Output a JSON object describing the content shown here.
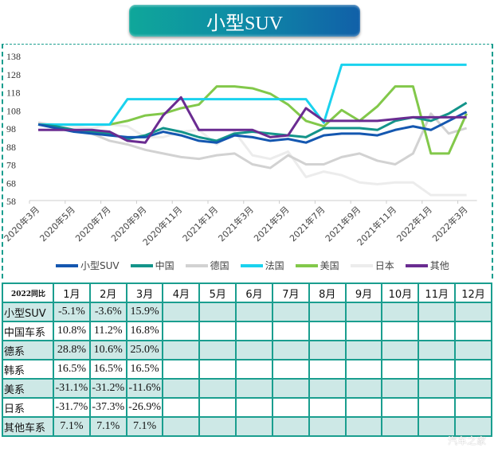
{
  "title": "小型SUV",
  "chart_data": {
    "type": "line",
    "title": "小型SUV",
    "x": [
      "2020年3月",
      "2020年4月",
      "2020年5月",
      "2020年6月",
      "2020年7月",
      "2020年8月",
      "2020年9月",
      "2020年10月",
      "2020年11月",
      "2020年12月",
      "2021年1月",
      "2021年2月",
      "2021年3月",
      "2021年4月",
      "2021年5月",
      "2021年6月",
      "2021年7月",
      "2021年8月",
      "2021年9月",
      "2021年10月",
      "2021年11月",
      "2021年12月",
      "2022年1月",
      "2022年2月",
      "2022年3月"
    ],
    "x_tick_labels": [
      "2020年3月",
      "2020年5月",
      "2020年7月",
      "2020年9月",
      "2020年11月",
      "2021年1月",
      "2021年3月",
      "2021年5月",
      "2021年7月",
      "2021年9月",
      "2021年11月",
      "2022年1月",
      "2022年3月"
    ],
    "ylim": [
      58,
      138
    ],
    "y_ticks": [
      58,
      68,
      78,
      88,
      98,
      108,
      118,
      128,
      138
    ],
    "grid": false,
    "legend_placement": "bottom",
    "series": [
      {
        "name": "小型SUV",
        "color": "#1457b0",
        "values": [
          100,
          98,
          96,
          95,
          94,
          93,
          93,
          96,
          94,
          91,
          90,
          94,
          93,
          91,
          92,
          90,
          94,
          95,
          95,
          94,
          97,
          99,
          97,
          102,
          107
        ]
      },
      {
        "name": "中国",
        "color": "#13948a",
        "values": [
          100,
          99,
          97,
          96,
          95,
          92,
          94,
          98,
          96,
          93,
          91,
          95,
          96,
          95,
          94,
          93,
          98,
          98,
          98,
          97,
          102,
          104,
          102,
          106,
          112
        ]
      },
      {
        "name": "德国",
        "color": "#d2d2d2",
        "values": [
          101,
          99,
          97,
          95,
          91,
          89,
          86,
          84,
          82,
          81,
          83,
          84,
          78,
          76,
          83,
          78,
          78,
          82,
          84,
          80,
          78,
          84,
          106,
          95,
          98
        ]
      },
      {
        "name": "法国",
        "color": "#1ad2ee",
        "values": [
          100,
          100,
          100,
          100,
          100,
          114,
          114,
          114,
          114,
          114,
          114,
          114,
          114,
          114,
          114,
          114,
          101,
          133,
          133,
          133,
          133,
          133,
          133,
          133,
          133
        ]
      },
      {
        "name": "美国",
        "color": "#82c84a",
        "values": [
          100,
          100,
          100,
          100,
          100,
          102,
          105,
          106,
          109,
          111,
          121,
          121,
          120,
          117,
          111,
          102,
          99,
          108,
          102,
          110,
          121,
          121,
          84,
          84,
          106
        ]
      },
      {
        "name": "日本",
        "color": "#ececec",
        "values": [
          101,
          100,
          99,
          98,
          100,
          99,
          93,
          93,
          96,
          97,
          89,
          96,
          83,
          81,
          85,
          71,
          74,
          72,
          68,
          67,
          68,
          68,
          61,
          61,
          61
        ]
      },
      {
        "name": "其他",
        "color": "#6a2c91",
        "values": [
          97,
          97,
          97,
          97,
          96,
          91,
          90,
          105,
          115,
          97,
          97,
          97,
          97,
          93,
          94,
          109,
          102,
          102,
          102,
          102,
          103,
          104,
          104,
          104,
          104
        ]
      }
    ]
  },
  "table": {
    "corner": "2022同比",
    "months": [
      "1月",
      "2月",
      "3月",
      "4月",
      "5月",
      "6月",
      "7月",
      "8月",
      "9月",
      "10月",
      "11月",
      "12月"
    ],
    "rows": [
      {
        "label": "小型SUV",
        "values": [
          "-5.1%",
          "-3.6%",
          "15.9%"
        ]
      },
      {
        "label": "中国车系",
        "values": [
          "10.8%",
          "11.2%",
          "16.8%"
        ]
      },
      {
        "label": "德系",
        "values": [
          "28.8%",
          "10.6%",
          "25.0%"
        ]
      },
      {
        "label": "韩系",
        "values": [
          "16.5%",
          "16.5%",
          "16.5%"
        ]
      },
      {
        "label": "美系",
        "values": [
          "-31.1%",
          "-31.2%",
          "-11.6%"
        ]
      },
      {
        "label": "日系",
        "values": [
          "-31.7%",
          "-37.3%",
          "-26.9%"
        ]
      },
      {
        "label": "其他车系",
        "values": [
          "7.1%",
          "7.1%",
          "7.1%"
        ]
      }
    ]
  },
  "watermark": "汽车之家"
}
